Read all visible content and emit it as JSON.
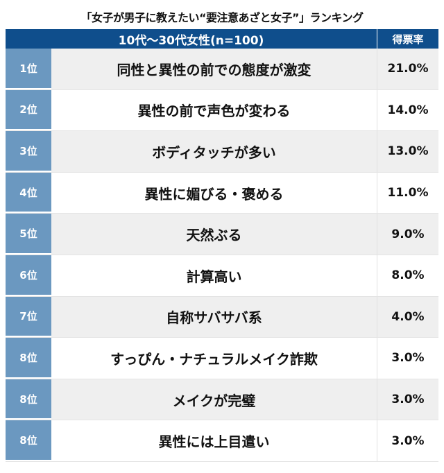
{
  "title": "「女子が男子に教えたい“要注意あざと女子”」ランキング",
  "header": {
    "group": "10代〜30代女性(n=100)",
    "rate": "得票率"
  },
  "colors": {
    "header": "#0f4e8c",
    "rank": "#6b98c0",
    "alt_row": "#efefef"
  },
  "rows": [
    {
      "rank": "1位",
      "item": "同性と異性の前での態度が激変",
      "rate": "21.0%"
    },
    {
      "rank": "2位",
      "item": "異性の前で声色が変わる",
      "rate": "14.0%"
    },
    {
      "rank": "3位",
      "item": "ボディタッチが多い",
      "rate": "13.0%"
    },
    {
      "rank": "4位",
      "item": "異性に媚びる・褒める",
      "rate": "11.0%"
    },
    {
      "rank": "5位",
      "item": "天然ぶる",
      "rate": "9.0%"
    },
    {
      "rank": "6位",
      "item": "計算高い",
      "rate": "8.0%"
    },
    {
      "rank": "7位",
      "item": "自称サバサバ系",
      "rate": "4.0%"
    },
    {
      "rank": "8位",
      "item": "すっぴん・ナチュラルメイク詐欺",
      "rate": "3.0%"
    },
    {
      "rank": "8位",
      "item": "メイクが完璧",
      "rate": "3.0%"
    },
    {
      "rank": "8位",
      "item": "異性には上目遣い",
      "rate": "3.0%"
    }
  ]
}
